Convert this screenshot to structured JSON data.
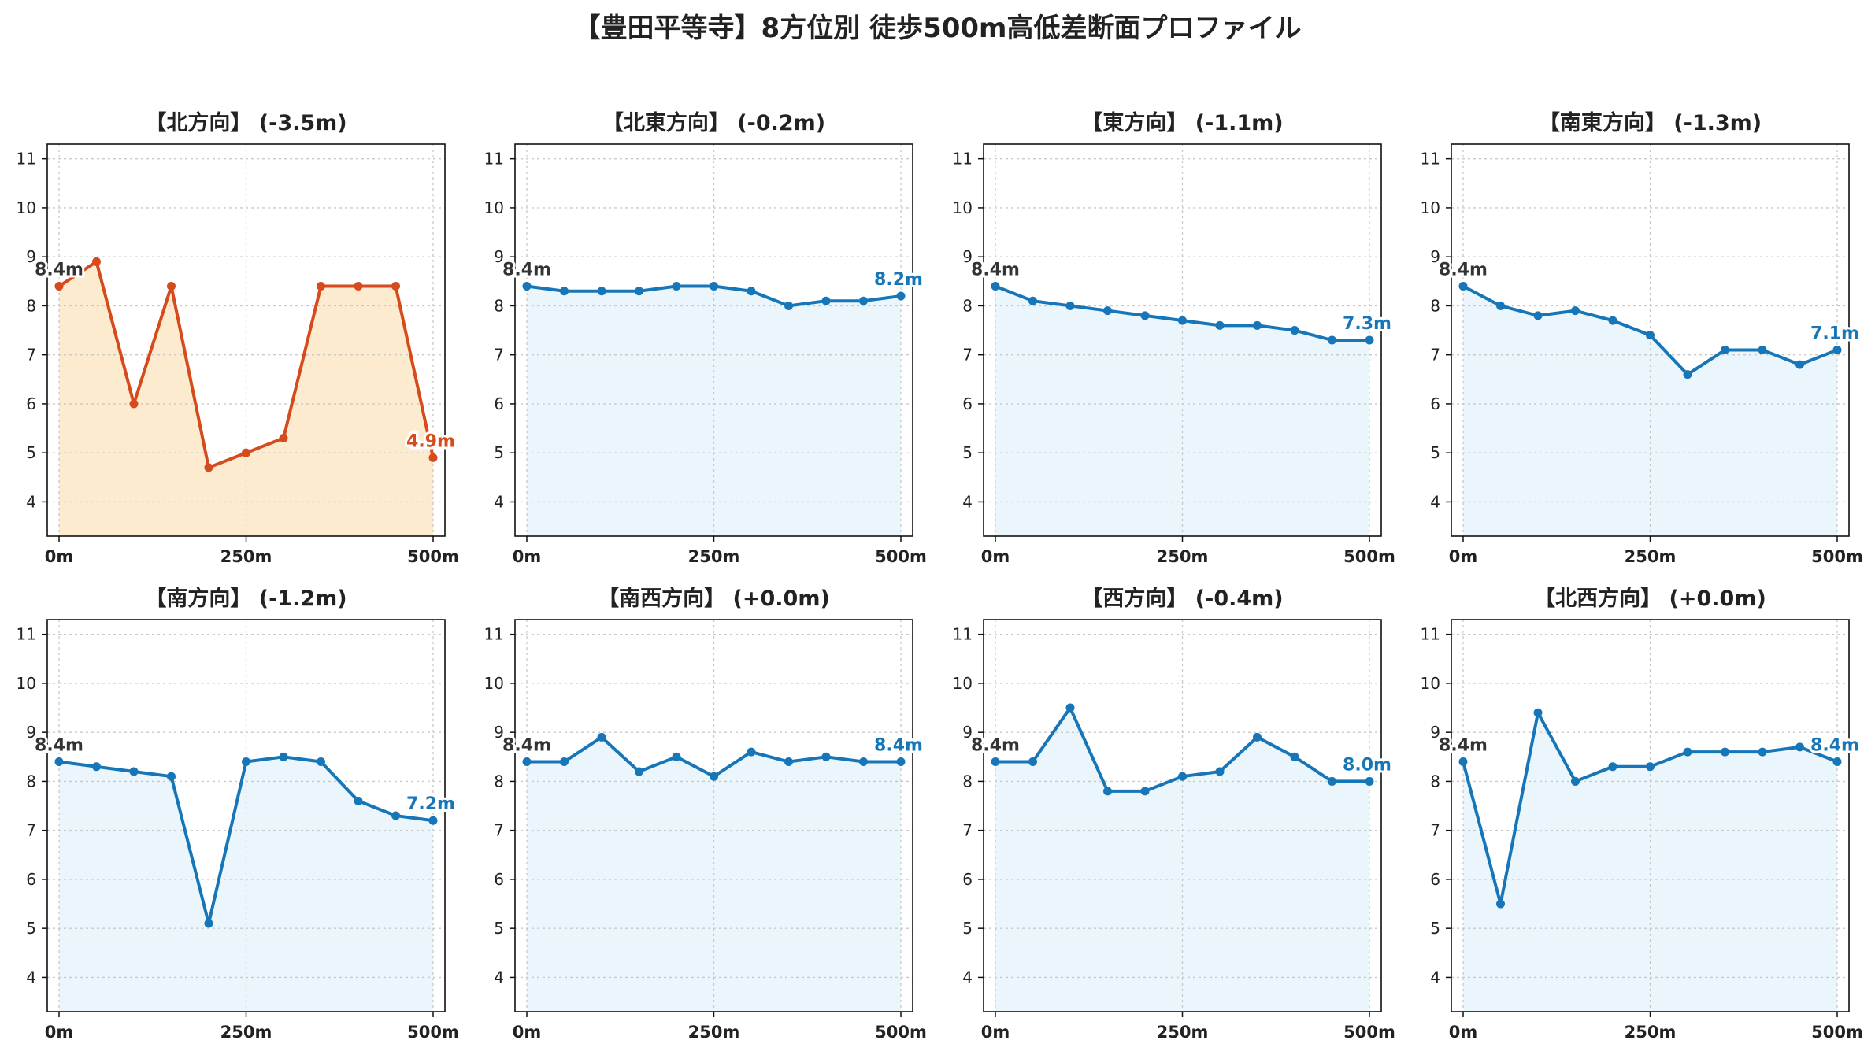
{
  "title": "【豊田平等寺】8方位別 徒歩500m高低差断面プロファイル",
  "colors": {
    "down_line": "#d64a1c",
    "down_fill": "#fdebd0",
    "normal_line": "#1776b8",
    "normal_fill": "#eaf6fb",
    "start_label": "#333333",
    "grid": "#c8c8c8"
  },
  "chart_data": [
    {
      "type": "line",
      "title": "【北方向】 (-3.5m)",
      "highlight": true,
      "x": [
        0,
        50,
        100,
        150,
        200,
        250,
        300,
        350,
        400,
        450,
        500
      ],
      "values": [
        8.4,
        8.9,
        6.0,
        8.4,
        4.7,
        5.0,
        5.3,
        8.4,
        8.4,
        8.4,
        4.9
      ],
      "start_label": "8.4m",
      "end_label": "4.9m",
      "xticks": [
        "0m",
        "250m",
        "500m"
      ],
      "yticks": [
        "4",
        "5",
        "6",
        "7",
        "8",
        "9",
        "10",
        "11"
      ],
      "xlim": [
        0,
        500
      ],
      "ylim": [
        3.3,
        11.3
      ],
      "grid": true
    },
    {
      "type": "line",
      "title": "【北東方向】 (-0.2m)",
      "highlight": false,
      "x": [
        0,
        50,
        100,
        150,
        200,
        250,
        300,
        350,
        400,
        450,
        500
      ],
      "values": [
        8.4,
        8.3,
        8.3,
        8.3,
        8.4,
        8.4,
        8.3,
        8.0,
        8.1,
        8.1,
        8.2
      ],
      "start_label": "8.4m",
      "end_label": "8.2m",
      "xticks": [
        "0m",
        "250m",
        "500m"
      ],
      "yticks": [
        "4",
        "5",
        "6",
        "7",
        "8",
        "9",
        "10",
        "11"
      ],
      "xlim": [
        0,
        500
      ],
      "ylim": [
        3.3,
        11.3
      ],
      "grid": true
    },
    {
      "type": "line",
      "title": "【東方向】 (-1.1m)",
      "highlight": false,
      "x": [
        0,
        50,
        100,
        150,
        200,
        250,
        300,
        350,
        400,
        450,
        500
      ],
      "values": [
        8.4,
        8.1,
        8.0,
        7.9,
        7.8,
        7.7,
        7.6,
        7.6,
        7.5,
        7.3,
        7.3
      ],
      "start_label": "8.4m",
      "end_label": "7.3m",
      "xticks": [
        "0m",
        "250m",
        "500m"
      ],
      "yticks": [
        "4",
        "5",
        "6",
        "7",
        "8",
        "9",
        "10",
        "11"
      ],
      "xlim": [
        0,
        500
      ],
      "ylim": [
        3.3,
        11.3
      ],
      "grid": true
    },
    {
      "type": "line",
      "title": "【南東方向】 (-1.3m)",
      "highlight": false,
      "x": [
        0,
        50,
        100,
        150,
        200,
        250,
        300,
        350,
        400,
        450,
        500
      ],
      "values": [
        8.4,
        8.0,
        7.8,
        7.9,
        7.7,
        7.4,
        6.6,
        7.1,
        7.1,
        6.8,
        7.1
      ],
      "start_label": "8.4m",
      "end_label": "7.1m",
      "xticks": [
        "0m",
        "250m",
        "500m"
      ],
      "yticks": [
        "4",
        "5",
        "6",
        "7",
        "8",
        "9",
        "10",
        "11"
      ],
      "xlim": [
        0,
        500
      ],
      "ylim": [
        3.3,
        11.3
      ],
      "grid": true
    },
    {
      "type": "line",
      "title": "【南方向】 (-1.2m)",
      "highlight": false,
      "x": [
        0,
        50,
        100,
        150,
        200,
        250,
        300,
        350,
        400,
        450,
        500
      ],
      "values": [
        8.4,
        8.3,
        8.2,
        8.1,
        5.1,
        8.4,
        8.5,
        8.4,
        7.6,
        7.3,
        7.2
      ],
      "start_label": "8.4m",
      "end_label": "7.2m",
      "xticks": [
        "0m",
        "250m",
        "500m"
      ],
      "yticks": [
        "4",
        "5",
        "6",
        "7",
        "8",
        "9",
        "10",
        "11"
      ],
      "xlim": [
        0,
        500
      ],
      "ylim": [
        3.3,
        11.3
      ],
      "grid": true
    },
    {
      "type": "line",
      "title": "【南西方向】 (+0.0m)",
      "highlight": false,
      "x": [
        0,
        50,
        100,
        150,
        200,
        250,
        300,
        350,
        400,
        450,
        500
      ],
      "values": [
        8.4,
        8.4,
        8.9,
        8.2,
        8.5,
        8.1,
        8.6,
        8.4,
        8.5,
        8.4,
        8.4
      ],
      "start_label": "8.4m",
      "end_label": "8.4m",
      "xticks": [
        "0m",
        "250m",
        "500m"
      ],
      "yticks": [
        "4",
        "5",
        "6",
        "7",
        "8",
        "9",
        "10",
        "11"
      ],
      "xlim": [
        0,
        500
      ],
      "ylim": [
        3.3,
        11.3
      ],
      "grid": true
    },
    {
      "type": "line",
      "title": "【西方向】 (-0.4m)",
      "highlight": false,
      "x": [
        0,
        50,
        100,
        150,
        200,
        250,
        300,
        350,
        400,
        450,
        500
      ],
      "values": [
        8.4,
        8.4,
        9.5,
        7.8,
        7.8,
        8.1,
        8.2,
        8.9,
        8.5,
        8.0,
        8.0
      ],
      "start_label": "8.4m",
      "end_label": "8.0m",
      "xticks": [
        "0m",
        "250m",
        "500m"
      ],
      "yticks": [
        "4",
        "5",
        "6",
        "7",
        "8",
        "9",
        "10",
        "11"
      ],
      "xlim": [
        0,
        500
      ],
      "ylim": [
        3.3,
        11.3
      ],
      "grid": true
    },
    {
      "type": "line",
      "title": "【北西方向】 (+0.0m)",
      "highlight": false,
      "x": [
        0,
        50,
        100,
        150,
        200,
        250,
        300,
        350,
        400,
        450,
        500
      ],
      "values": [
        8.4,
        5.5,
        9.4,
        8.0,
        8.3,
        8.3,
        8.6,
        8.6,
        8.6,
        8.7,
        8.4
      ],
      "start_label": "8.4m",
      "end_label": "8.4m",
      "xticks": [
        "0m",
        "250m",
        "500m"
      ],
      "yticks": [
        "4",
        "5",
        "6",
        "7",
        "8",
        "9",
        "10",
        "11"
      ],
      "xlim": [
        0,
        500
      ],
      "ylim": [
        3.3,
        11.3
      ],
      "grid": true
    }
  ]
}
